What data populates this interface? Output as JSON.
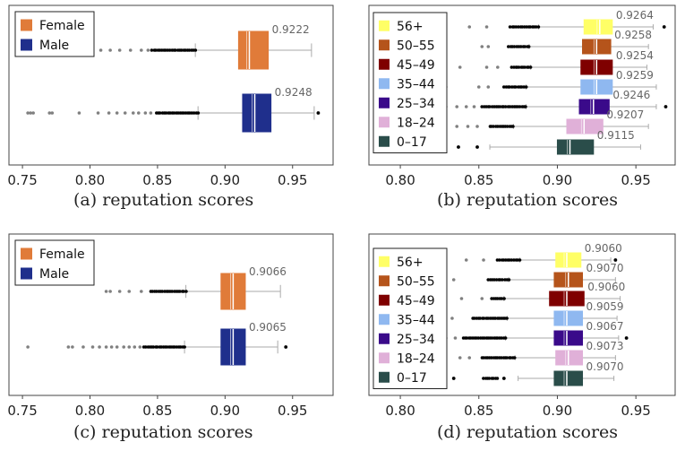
{
  "colors": {
    "female": "#e07b39",
    "male": "#1f2f8c",
    "age_56_plus": "#ffff66",
    "age_50_55": "#b5541b",
    "age_45_49": "#7f0000",
    "age_35_44": "#8fb8f0",
    "age_25_34": "#3a0a8a",
    "age_18_24": "#e0b0d8",
    "age_0_17": "#2a4d4a",
    "whisker": "#aaaaaa",
    "outlier_dark": "#000000",
    "outlier_light": "#808080",
    "annotation": "#666666"
  },
  "chart_data": [
    {
      "id": "a",
      "type": "box",
      "caption": "(a)  reputation scores",
      "xlim": [
        0.74,
        0.98
      ],
      "xticks": [
        "0.75",
        "0.80",
        "0.85",
        "0.90",
        "0.95"
      ],
      "xtick_values": [
        0.75,
        0.8,
        0.85,
        0.9,
        0.95
      ],
      "legend": [
        "Female",
        "Male"
      ],
      "series": [
        {
          "name": "Female",
          "color_key": "female",
          "q1": 0.91,
          "median": 0.918,
          "q3": 0.932,
          "whisker_low": 0.878,
          "whisker_high": 0.964,
          "mean_label": "0.9222",
          "outliers_dark_range": [
            0.846,
            0.878
          ],
          "outliers_light": [
            0.808,
            0.815,
            0.822,
            0.83,
            0.838,
            0.843
          ]
        },
        {
          "name": "Male",
          "color_key": "male",
          "q1": 0.913,
          "median": 0.922,
          "q3": 0.934,
          "whisker_low": 0.88,
          "whisker_high": 0.966,
          "mean_label": "0.9248",
          "outliers_dark_range": [
            0.849,
            0.88
          ],
          "outliers_light": [
            0.754,
            0.756,
            0.758,
            0.77,
            0.772,
            0.792,
            0.806,
            0.814,
            0.82,
            0.826,
            0.832,
            0.836,
            0.841,
            0.845
          ],
          "outliers_extreme": [
            0.969
          ]
        }
      ]
    },
    {
      "id": "b",
      "type": "box",
      "caption": "(b)  reputation scores",
      "xlim": [
        0.78,
        0.975
      ],
      "xticks": [
        "0.80",
        "0.85",
        "0.90",
        "0.95"
      ],
      "xtick_values": [
        0.8,
        0.85,
        0.9,
        0.95
      ],
      "legend": [
        "56+",
        "50–55",
        "45–49",
        "35–44",
        "25–34",
        "18–24",
        "0–17"
      ],
      "series": [
        {
          "name": "56+",
          "color_key": "age_56_plus",
          "q1": 0.917,
          "median": 0.927,
          "q3": 0.935,
          "whisker_low": 0.888,
          "whisker_high": 0.961,
          "mean_label": "0.9264",
          "outliers_dark_range": [
            0.87,
            0.888
          ],
          "outliers_light": [
            0.825,
            0.844,
            0.855
          ],
          "outliers_extreme": [
            0.968
          ]
        },
        {
          "name": "50–55",
          "color_key": "age_50_55",
          "q1": 0.916,
          "median": 0.925,
          "q3": 0.934,
          "whisker_low": 0.882,
          "whisker_high": 0.958,
          "mean_label": "0.9258",
          "outliers_dark_range": [
            0.869,
            0.882
          ],
          "outliers_light": [
            0.817,
            0.852,
            0.856
          ]
        },
        {
          "name": "45–49",
          "color_key": "age_45_49",
          "q1": 0.915,
          "median": 0.925,
          "q3": 0.935,
          "whisker_low": 0.883,
          "whisker_high": 0.957,
          "mean_label": "0.9254",
          "outliers_dark_range": [
            0.871,
            0.883
          ],
          "outliers_light": [
            0.838,
            0.855,
            0.862
          ]
        },
        {
          "name": "35–44",
          "color_key": "age_35_44",
          "q1": 0.915,
          "median": 0.925,
          "q3": 0.935,
          "whisker_low": 0.88,
          "whisker_high": 0.963,
          "mean_label": "0.9259",
          "outliers_dark_range": [
            0.866,
            0.88
          ],
          "outliers_light": [
            0.814,
            0.822,
            0.829,
            0.85,
            0.856
          ]
        },
        {
          "name": "25–34",
          "color_key": "age_25_34",
          "q1": 0.914,
          "median": 0.923,
          "q3": 0.933,
          "whisker_low": 0.88,
          "whisker_high": 0.963,
          "mean_label": "0.9246",
          "outliers_dark_range": [
            0.852,
            0.88
          ],
          "outliers_light": [
            0.816,
            0.823,
            0.829,
            0.836,
            0.842,
            0.847
          ],
          "outliers_extreme": [
            0.969
          ]
        },
        {
          "name": "18–24",
          "color_key": "age_18_24",
          "q1": 0.906,
          "median": 0.917,
          "q3": 0.929,
          "whisker_low": 0.872,
          "whisker_high": 0.958,
          "mean_label": "0.9207",
          "outliers_dark_range": [
            0.857,
            0.872
          ],
          "outliers_light": [
            0.836,
            0.843,
            0.849
          ]
        },
        {
          "name": "0–17",
          "color_key": "age_0_17",
          "q1": 0.9,
          "median": 0.908,
          "q3": 0.923,
          "whisker_low": 0.857,
          "whisker_high": 0.953,
          "mean_label": "0.9115",
          "outliers_dark_range": [
            0.822,
            0.824
          ],
          "outliers_light": [],
          "outliers_extreme": [
            0.837,
            0.849
          ]
        }
      ]
    },
    {
      "id": "c",
      "type": "box",
      "caption": "(c)  reputation scores",
      "xlim": [
        0.74,
        0.98
      ],
      "xticks": [
        "0.75",
        "0.80",
        "0.85",
        "0.90",
        "0.95"
      ],
      "xtick_values": [
        0.75,
        0.8,
        0.85,
        0.9,
        0.95
      ],
      "legend": [
        "Female",
        "Male"
      ],
      "series": [
        {
          "name": "Female",
          "color_key": "female",
          "q1": 0.897,
          "median": 0.906,
          "q3": 0.915,
          "whisker_low": 0.871,
          "whisker_high": 0.941,
          "mean_label": "0.9066",
          "outliers_dark_range": [
            0.845,
            0.871
          ],
          "outliers_light": [
            0.812,
            0.815,
            0.822,
            0.829,
            0.838
          ]
        },
        {
          "name": "Male",
          "color_key": "male",
          "q1": 0.897,
          "median": 0.906,
          "q3": 0.915,
          "whisker_low": 0.87,
          "whisker_high": 0.939,
          "mean_label": "0.9065",
          "outliers_dark_range": [
            0.84,
            0.87
          ],
          "outliers_light": [
            0.754,
            0.784,
            0.787,
            0.795,
            0.802,
            0.807,
            0.812,
            0.816,
            0.82,
            0.825,
            0.829,
            0.833,
            0.837
          ],
          "outliers_extreme": [
            0.945
          ]
        }
      ]
    },
    {
      "id": "d",
      "type": "box",
      "caption": "(d)  reputation scores",
      "xlim": [
        0.78,
        0.975
      ],
      "xticks": [
        "0.80",
        "0.85",
        "0.90",
        "0.95"
      ],
      "xtick_values": [
        0.8,
        0.85,
        0.9,
        0.95
      ],
      "legend": [
        "56+",
        "50–55",
        "45–49",
        "35–44",
        "25–34",
        "18–24",
        "0–17"
      ],
      "series": [
        {
          "name": "56+",
          "color_key": "age_56_plus",
          "q1": 0.899,
          "median": 0.906,
          "q3": 0.915,
          "whisker_low": 0.876,
          "whisker_high": 0.934,
          "mean_label": "0.9060",
          "outliers_dark_range": [
            0.862,
            0.876
          ],
          "outliers_light": [
            0.826,
            0.842,
            0.853
          ],
          "outliers_extreme": [
            0.937
          ]
        },
        {
          "name": "50–55",
          "color_key": "age_50_55",
          "q1": 0.898,
          "median": 0.907,
          "q3": 0.916,
          "whisker_low": 0.869,
          "whisker_high": 0.937,
          "mean_label": "0.9070",
          "outliers_dark_range": [
            0.856,
            0.869
          ],
          "outliers_light": [
            0.834
          ]
        },
        {
          "name": "45–49",
          "color_key": "age_45_49",
          "q1": 0.895,
          "median": 0.906,
          "q3": 0.917,
          "whisker_low": 0.866,
          "whisker_high": 0.94,
          "mean_label": "0.9060",
          "outliers_dark_range": [
            0.858,
            0.866
          ],
          "outliers_light": [
            0.82,
            0.839,
            0.852
          ]
        },
        {
          "name": "35–44",
          "color_key": "age_35_44",
          "q1": 0.898,
          "median": 0.906,
          "q3": 0.916,
          "whisker_low": 0.868,
          "whisker_high": 0.938,
          "mean_label": "0.9059",
          "outliers_dark_range": [
            0.846,
            0.868
          ],
          "outliers_light": [
            0.813,
            0.823,
            0.833
          ]
        },
        {
          "name": "25–34",
          "color_key": "age_25_34",
          "q1": 0.898,
          "median": 0.906,
          "q3": 0.916,
          "whisker_low": 0.867,
          "whisker_high": 0.939,
          "mean_label": "0.9067",
          "outliers_dark_range": [
            0.84,
            0.867
          ],
          "outliers_light": [
            0.812,
            0.818,
            0.824,
            0.829,
            0.835
          ],
          "outliers_extreme": [
            0.944
          ]
        },
        {
          "name": "18–24",
          "color_key": "age_18_24",
          "q1": 0.899,
          "median": 0.907,
          "q3": 0.916,
          "whisker_low": 0.873,
          "whisker_high": 0.937,
          "mean_label": "0.9073",
          "outliers_dark_range": [
            0.852,
            0.873
          ],
          "outliers_light": [
            0.838,
            0.844
          ]
        },
        {
          "name": "0–17",
          "color_key": "age_0_17",
          "q1": 0.898,
          "median": 0.906,
          "q3": 0.916,
          "whisker_low": 0.875,
          "whisker_high": 0.936,
          "mean_label": "0.9070",
          "outliers_dark_range": [
            0.853,
            0.862
          ],
          "outliers_light": [],
          "outliers_extreme": [
            0.834,
            0.866
          ]
        }
      ]
    }
  ]
}
